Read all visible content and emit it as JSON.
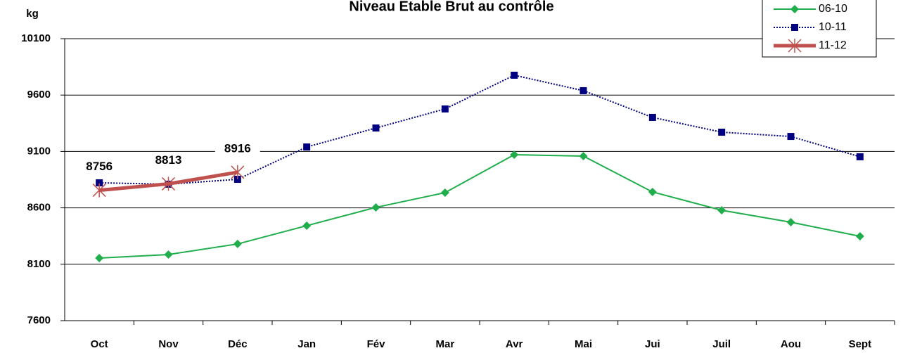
{
  "chart_data": {
    "type": "line",
    "title": "Niveau Etable Brut au contrôle",
    "y_label": "kg",
    "categories": [
      "Oct",
      "Nov",
      "Déc",
      "Jan",
      "Fév",
      "Mar",
      "Avr",
      "Mai",
      "Jui",
      "Juil",
      "Aou",
      "Sept"
    ],
    "series": [
      {
        "name": "06-10",
        "color": "#1fae4b",
        "marker": "diamond",
        "line_style": "solid",
        "values": [
          8155,
          8186,
          8280,
          8442,
          8604,
          8735,
          9071,
          9059,
          8741,
          8579,
          8473,
          8348
        ]
      },
      {
        "name": "10-11",
        "color": "#000080",
        "marker": "square",
        "line_style": "dotted",
        "values": [
          8822,
          8810,
          8853,
          9140,
          9308,
          9477,
          9776,
          9639,
          9402,
          9271,
          9233,
          9053
        ]
      },
      {
        "name": "11-12",
        "color": "#c0504d",
        "marker": "star",
        "line_style": "thick",
        "data_labels": true,
        "values": [
          8756,
          8813,
          8916,
          null,
          null,
          null,
          null,
          null,
          null,
          null,
          null,
          null
        ]
      }
    ],
    "ylim": [
      7600,
      10100
    ],
    "yticks": [
      7600,
      8100,
      8600,
      9100,
      9600,
      10100
    ],
    "grid": true,
    "legend": "top-right"
  }
}
